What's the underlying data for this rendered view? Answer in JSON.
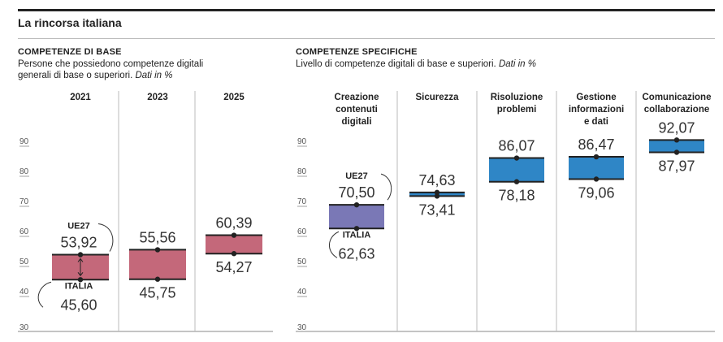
{
  "page": {
    "title": "La rincorsa italiana"
  },
  "left": {
    "title": "COMPETENZE DI BASE",
    "subtitle_line1": "Persone che possiedono competenze digitali",
    "subtitle_line2": "generali di base o superiori.",
    "subtitle_unit": "Dati in %"
  },
  "right": {
    "title": "COMPETENZE SPECIFICHE",
    "subtitle": "Livello di competenze digitali di base e superiori.",
    "subtitle_unit": "Dati in %"
  },
  "labels": {
    "ue": "UE27",
    "italia": "ITALIA"
  },
  "colors": {
    "left_fill": "#c4687a",
    "right_fill": "#2f86c6",
    "right_first_fill": "#7a78b6",
    "line": "#222222"
  },
  "chart_data": [
    {
      "type": "range",
      "ylim": [
        30,
        95
      ],
      "yticks": [
        30,
        40,
        50,
        60,
        70,
        80,
        90
      ],
      "categories": [
        "2021",
        "2023",
        "2025"
      ],
      "series": [
        {
          "name": "UE27",
          "values": [
            53.92,
            55.56,
            60.39
          ]
        },
        {
          "name": "ITALIA",
          "values": [
            45.6,
            45.75,
            54.27
          ]
        }
      ],
      "value_labels": {
        "high": [
          "53,92",
          "55,56",
          "60,39"
        ],
        "low": [
          "45,60",
          "45,75",
          "54,27"
        ]
      }
    },
    {
      "type": "range",
      "ylim": [
        30,
        95
      ],
      "yticks": [
        30,
        40,
        50,
        60,
        70,
        80,
        90
      ],
      "categories": [
        [
          "Creazione",
          "contenuti",
          "digitali"
        ],
        [
          "Sicurezza"
        ],
        [
          "Risoluzione",
          "problemi"
        ],
        [
          "Gestione",
          "informazioni",
          "e dati"
        ],
        [
          "Comunicazione",
          "collaborazione"
        ]
      ],
      "series": [
        {
          "name": "UE27",
          "values": [
            70.5,
            74.63,
            86.07,
            86.47,
            92.07
          ]
        },
        {
          "name": "ITALIA",
          "values": [
            62.63,
            73.41,
            78.18,
            79.06,
            87.97
          ]
        }
      ],
      "value_labels": {
        "high": [
          "70,50",
          "74,63",
          "86,07",
          "86,47",
          "92,07"
        ],
        "low": [
          "62,63",
          "73,41",
          "78,18",
          "79,06",
          "87,97"
        ]
      }
    }
  ]
}
